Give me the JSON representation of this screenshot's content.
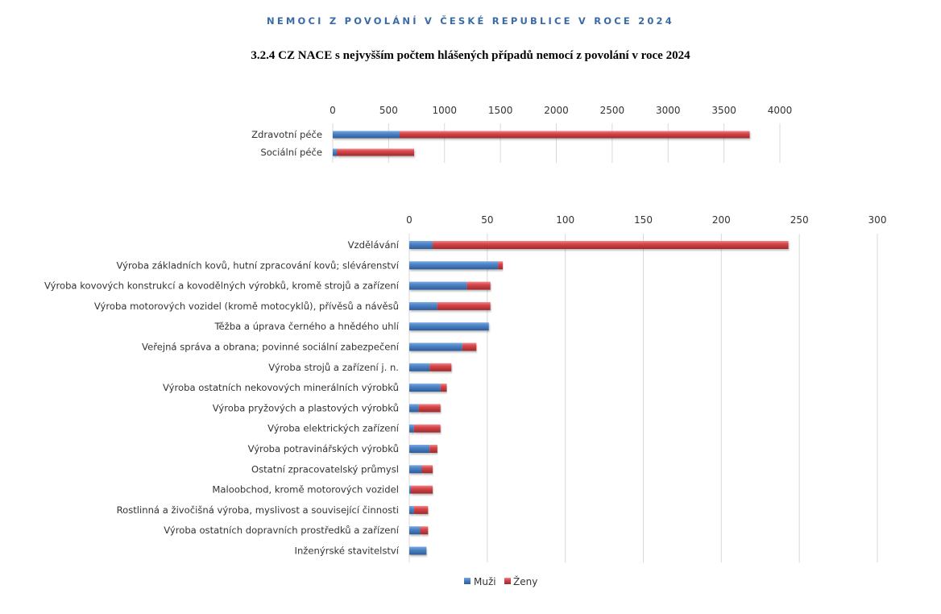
{
  "header": {
    "suptitle": "NEMOCI Z POVOLÁNÍ V ČESKÉ REPUBLICE V ROCE 2024",
    "title": "3.2.4 CZ NACE s nejvyšším počtem hlášených případů nemocí z povolání v roce 2024"
  },
  "colors": {
    "men": "#4a7ebf",
    "women": "#d9474b",
    "grid": "#d9d9d9"
  },
  "chart_data": [
    {
      "type": "bar",
      "orientation": "horizontal",
      "stacked": true,
      "title": "",
      "xlabel": "",
      "ylabel": "",
      "xlim": [
        0,
        4000
      ],
      "ticks": [
        0,
        500,
        1000,
        1500,
        2000,
        2500,
        3000,
        3500,
        4000
      ],
      "tick_labels": [
        "0",
        "500",
        "1000",
        "1500",
        "2000",
        "2500",
        "3000",
        "3500",
        "4000"
      ],
      "axis_position": "top",
      "grid": true,
      "categories": [
        "Zdravotní péče",
        "Sociální péče"
      ],
      "series": [
        {
          "name": "Muži",
          "values": [
            598,
            36
          ]
        },
        {
          "name": "Ženy",
          "values": [
            3132,
            692
          ]
        }
      ]
    },
    {
      "type": "bar",
      "orientation": "horizontal",
      "stacked": true,
      "title": "",
      "xlabel": "",
      "ylabel": "",
      "xlim": [
        0,
        300
      ],
      "ticks": [
        0,
        50,
        100,
        150,
        200,
        250,
        300
      ],
      "tick_labels": [
        "0",
        "50",
        "100",
        "150",
        "200",
        "250",
        "300"
      ],
      "axis_position": "top",
      "grid": true,
      "legend": "bottom",
      "categories": [
        "Vzdělávání",
        "Výroba základních kovů, hutní zpracování kovů; slévárenství",
        "Výroba kovových konstrukcí a kovodělných výrobků, kromě strojů a zařízení",
        "Výroba motorových vozidel (kromě motocyklů), přívěsů a návěsů",
        "Těžba a úprava černého a hnědého uhlí",
        "Veřejná správa a obrana; povinné sociální zabezpečení",
        "Výroba strojů a zařízení j. n.",
        "Výroba ostatních nekovových minerálních výrobků",
        "Výroba pryžových a plastových výrobků",
        "Výroba elektrických zařízení",
        "Výroba potravinářských výrobků",
        "Ostatní zpracovatelský průmysl",
        "Maloobchod, kromě motorových vozidel",
        "Rostlinná a živočišná výroba, myslivost a související činnosti",
        "Výroba ostatních dopravních prostředků a zařízení",
        "Inženýrské stavitelství"
      ],
      "series": [
        {
          "name": "Muži",
          "values": [
            15,
            57,
            37,
            18,
            51,
            34,
            13,
            20,
            6,
            3,
            13,
            8,
            1,
            3,
            7,
            11
          ]
        },
        {
          "name": "Ženy",
          "values": [
            228,
            3,
            15,
            34,
            0,
            9,
            14,
            4,
            14,
            17,
            5,
            7,
            14,
            9,
            5,
            0
          ]
        }
      ]
    }
  ],
  "legend": {
    "items": [
      {
        "label": "Muži",
        "series": "men"
      },
      {
        "label": "Ženy",
        "series": "women"
      }
    ]
  }
}
